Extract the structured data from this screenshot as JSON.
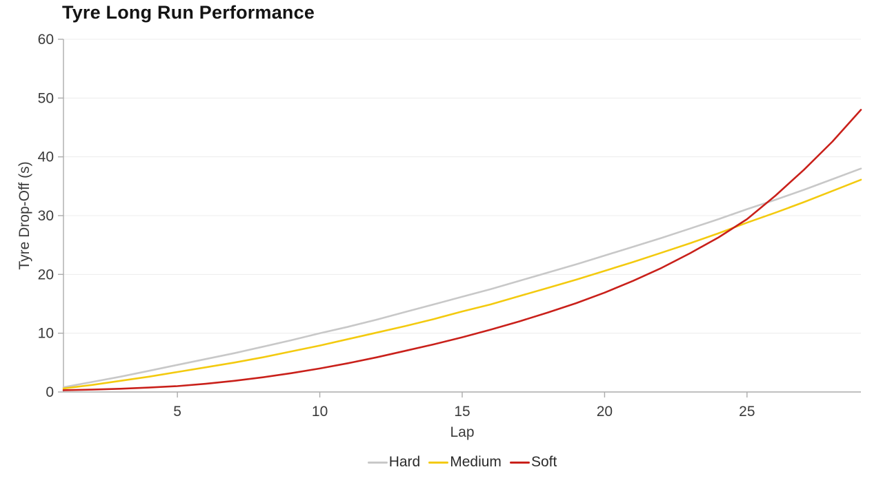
{
  "chart_data": {
    "type": "line",
    "title": "Tyre Long Run Performance",
    "xlabel": "Lap",
    "ylabel": "Tyre Drop-Off (s)",
    "x_range": [
      1,
      29
    ],
    "y_range": [
      0,
      60
    ],
    "x_ticks": [
      5,
      10,
      15,
      20,
      25
    ],
    "y_ticks": [
      0,
      10,
      20,
      30,
      40,
      50,
      60
    ],
    "grid": "horizontal",
    "legend_position": "bottom-center",
    "x": [
      1,
      2,
      3,
      4,
      5,
      6,
      7,
      8,
      9,
      10,
      11,
      12,
      13,
      14,
      15,
      16,
      17,
      18,
      19,
      20,
      21,
      22,
      23,
      24,
      25,
      26,
      27,
      28,
      29
    ],
    "series": [
      {
        "name": "Hard",
        "color": "#c8c8c8",
        "values": [
          0.8,
          1.7,
          2.6,
          3.6,
          4.6,
          5.6,
          6.6,
          7.7,
          8.8,
          10.0,
          11.1,
          12.3,
          13.6,
          14.9,
          16.2,
          17.5,
          18.9,
          20.3,
          21.7,
          23.2,
          24.7,
          26.2,
          27.8,
          29.4,
          31.1,
          32.7,
          34.4,
          36.2,
          38.0
        ]
      },
      {
        "name": "Medium",
        "color": "#f3ca0f",
        "values": [
          0.6,
          1.2,
          1.9,
          2.6,
          3.4,
          4.2,
          5.0,
          5.9,
          6.9,
          7.9,
          9.0,
          10.1,
          11.2,
          12.4,
          13.7,
          14.9,
          16.3,
          17.7,
          19.1,
          20.6,
          22.1,
          23.7,
          25.3,
          27.0,
          28.8,
          30.5,
          32.3,
          34.2,
          36.1
        ]
      },
      {
        "name": "Soft",
        "color": "#c9201a",
        "values": [
          0.3,
          0.4,
          0.55,
          0.75,
          1.0,
          1.4,
          1.9,
          2.5,
          3.2,
          4.0,
          4.9,
          5.9,
          7.0,
          8.1,
          9.3,
          10.6,
          12.0,
          13.5,
          15.1,
          16.9,
          18.9,
          21.1,
          23.6,
          26.3,
          29.4,
          33.4,
          37.8,
          42.6,
          48.0
        ]
      }
    ],
    "style": {
      "axis_color": "#ababab",
      "grid_color": "#ececec",
      "tick_text_color": "#3a3a3a",
      "title_color": "#141414",
      "background": "#ffffff"
    }
  }
}
